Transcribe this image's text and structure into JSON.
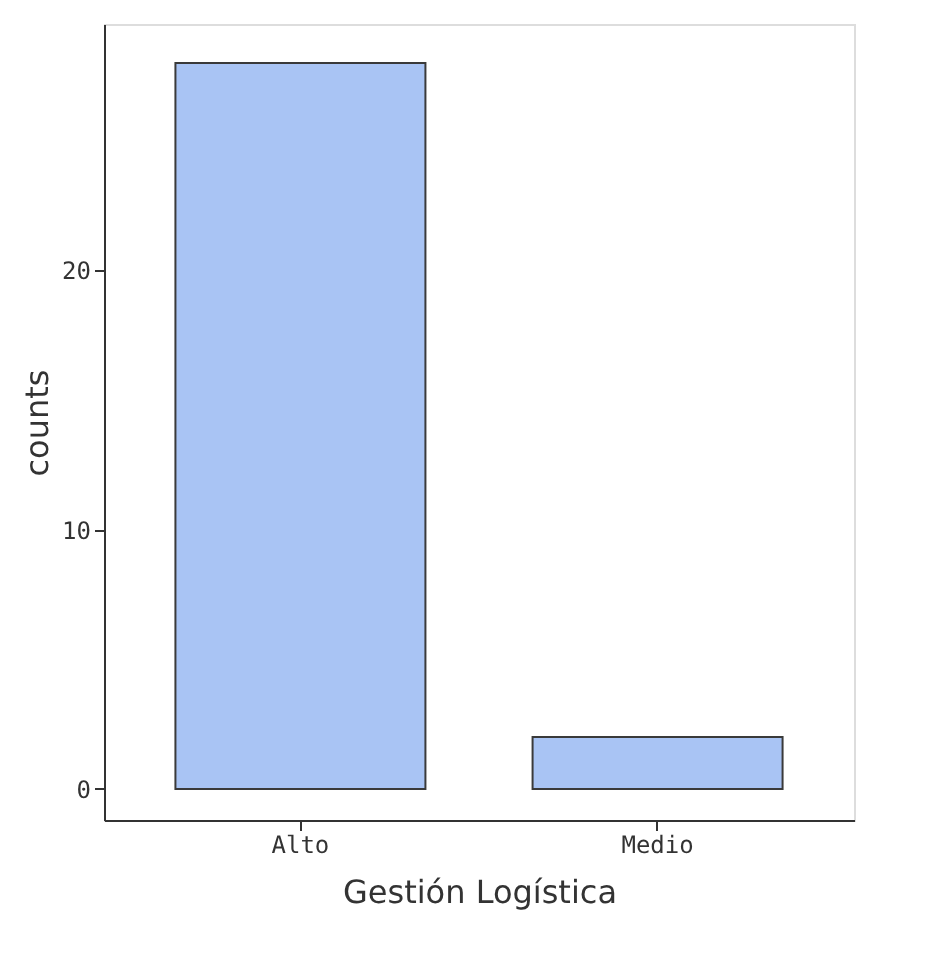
{
  "chart_data": {
    "type": "bar",
    "xlabel": "Gestión Logística",
    "ylabel": "counts",
    "categories": [
      "Alto",
      "Medio"
    ],
    "values": [
      28,
      2
    ],
    "color": "#a9c4f4",
    "ylim": [
      -1.2,
      29.5
    ],
    "yticks": [
      0,
      10,
      20
    ],
    "grid": false
  }
}
